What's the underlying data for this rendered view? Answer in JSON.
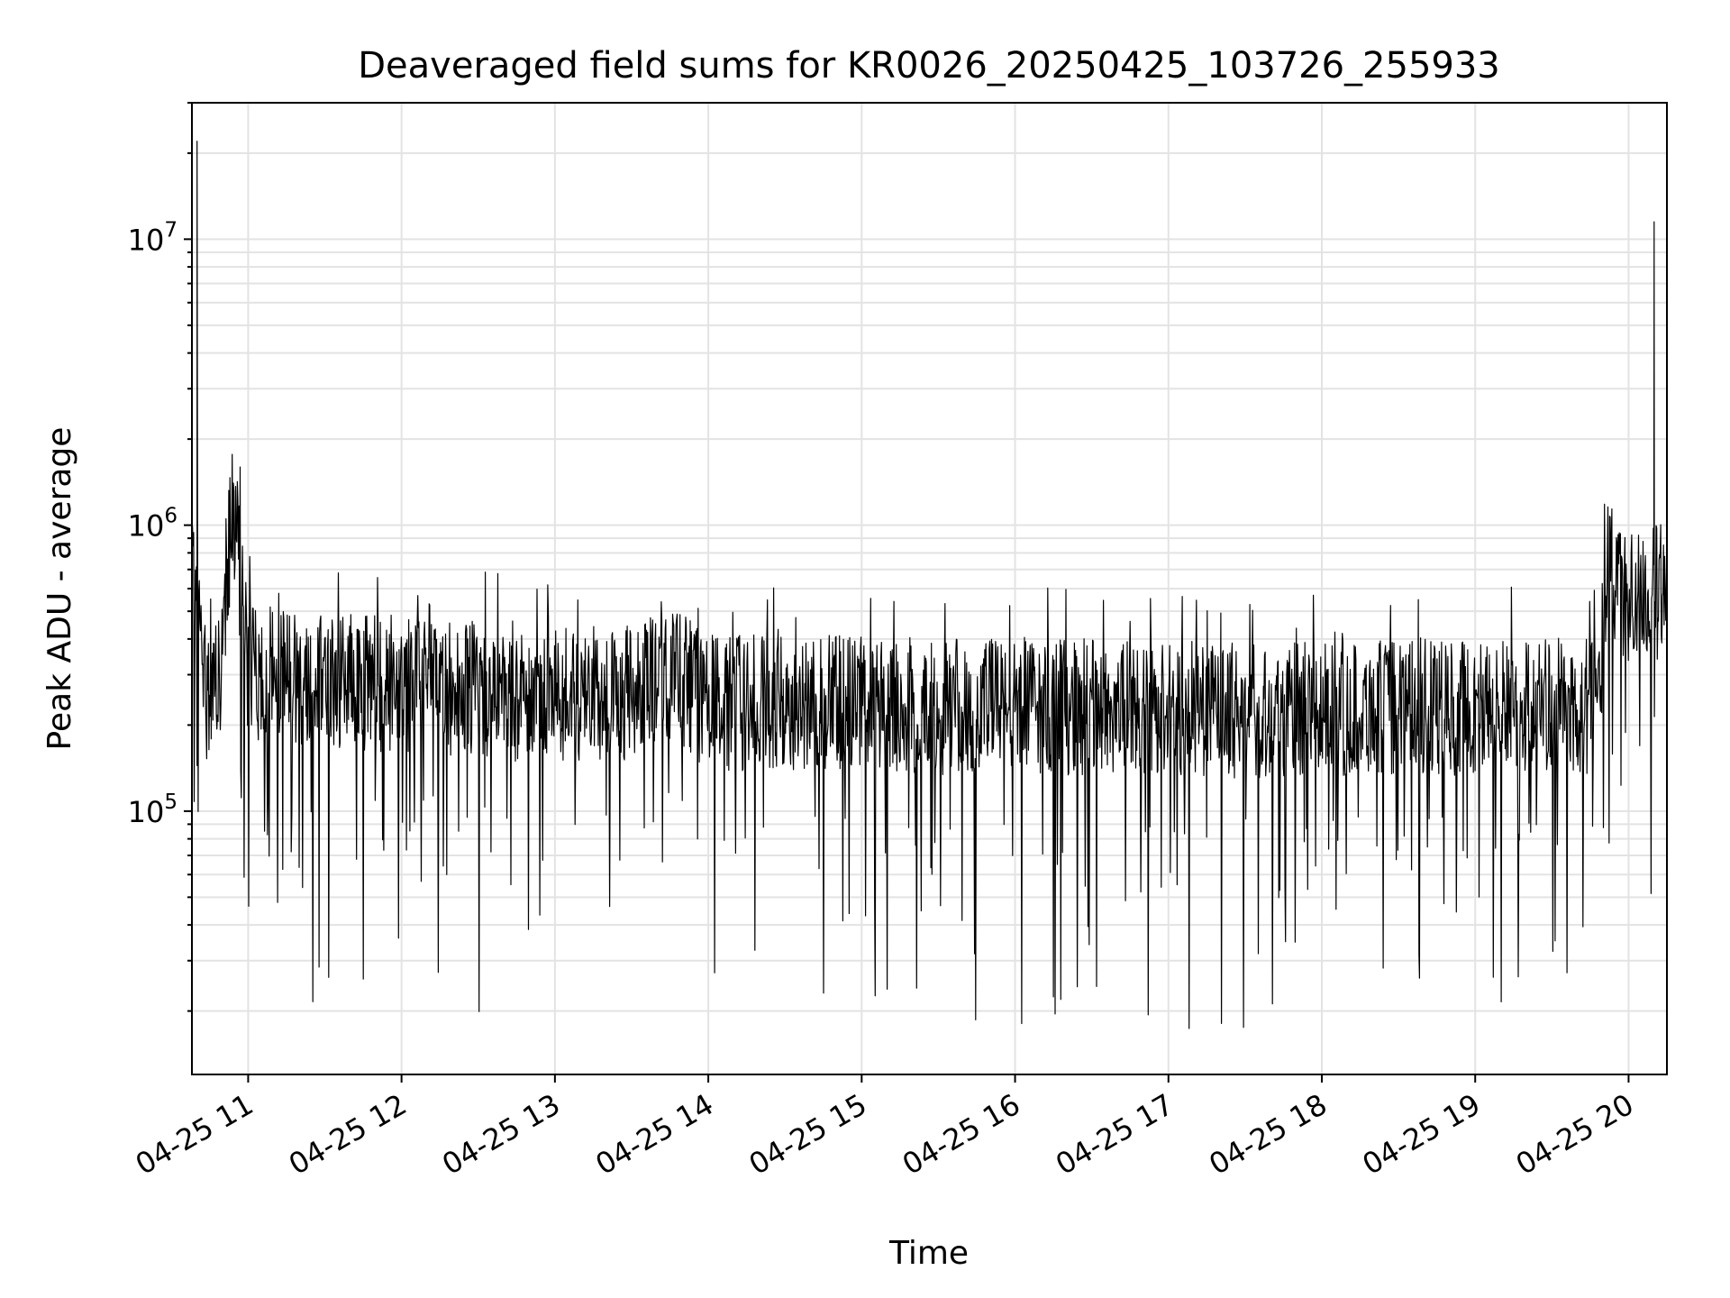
{
  "chart_data": {
    "type": "line",
    "title": "Deaveraged field sums for KR0026_20250425_103726_255933",
    "xlabel": "Time",
    "ylabel": "Peak ADU - average",
    "yscale": "log",
    "ylim": [
      12000,
      30000000
    ],
    "xlim": [
      "2025-04-25 10:38",
      "2025-04-25 20:15"
    ],
    "grid": true,
    "line_color": "#000000",
    "x_tick_labels": [
      "04-25 11",
      "04-25 12",
      "04-25 13",
      "04-25 14",
      "04-25 15",
      "04-25 16",
      "04-25 17",
      "04-25 18",
      "04-25 19",
      "04-25 20"
    ],
    "x_ticks": [
      "2025-04-25 11:00",
      "2025-04-25 12:00",
      "2025-04-25 13:00",
      "2025-04-25 14:00",
      "2025-04-25 15:00",
      "2025-04-25 16:00",
      "2025-04-25 17:00",
      "2025-04-25 18:00",
      "2025-04-25 19:00",
      "2025-04-25 20:00"
    ],
    "y_major_ticks": [
      {
        "value": 100000,
        "base": "10",
        "exp": "5"
      },
      {
        "value": 1000000,
        "base": "10",
        "exp": "6"
      },
      {
        "value": 10000000,
        "base": "10",
        "exp": "7"
      }
    ],
    "series": [
      {
        "x": [
          "2025-04-25 10:38",
          "2025-04-25 10:40",
          "2025-04-25 10:41",
          "2025-04-25 10:42",
          "2025-04-25 10:44",
          "2025-04-25 10:46",
          "2025-04-25 10:50",
          "2025-04-25 10:52",
          "2025-04-25 10:54",
          "2025-04-25 10:56",
          "2025-04-25 10:58",
          "2025-04-25 11:00",
          "2025-04-25 11:03",
          "2025-04-25 11:08",
          "2025-04-25 11:18",
          "2025-04-25 11:30",
          "2025-04-25 11:45",
          "2025-04-25 12:00",
          "2025-04-25 12:20",
          "2025-04-25 12:40",
          "2025-04-25 13:00",
          "2025-04-25 13:30",
          "2025-04-25 13:42",
          "2025-04-25 14:00",
          "2025-04-25 14:30",
          "2025-04-25 15:00",
          "2025-04-25 15:30",
          "2025-04-25 16:00",
          "2025-04-25 16:30",
          "2025-04-25 17:00",
          "2025-04-25 17:30",
          "2025-04-25 18:00",
          "2025-04-25 18:30",
          "2025-04-25 19:00",
          "2025-04-25 19:30",
          "2025-04-25 19:40",
          "2025-04-25 19:48",
          "2025-04-25 19:52",
          "2025-04-25 19:56",
          "2025-04-25 20:00",
          "2025-04-25 20:08",
          "2025-04-25 20:10",
          "2025-04-25 20:12",
          "2025-04-25 20:15"
        ],
        "y": [
          600000,
          22000000,
          450000,
          300000,
          260000,
          280000,
          300000,
          700000,
          1100000,
          800000,
          500000,
          320000,
          290000,
          310000,
          300000,
          290000,
          280000,
          280000,
          270000,
          260000,
          250000,
          260000,
          320000,
          240000,
          240000,
          240000,
          230000,
          235000,
          230000,
          230000,
          225000,
          225000,
          230000,
          230000,
          240000,
          220000,
          250000,
          700000,
          600000,
          550000,
          560000,
          11500000,
          600000,
          700000
        ]
      }
    ]
  }
}
